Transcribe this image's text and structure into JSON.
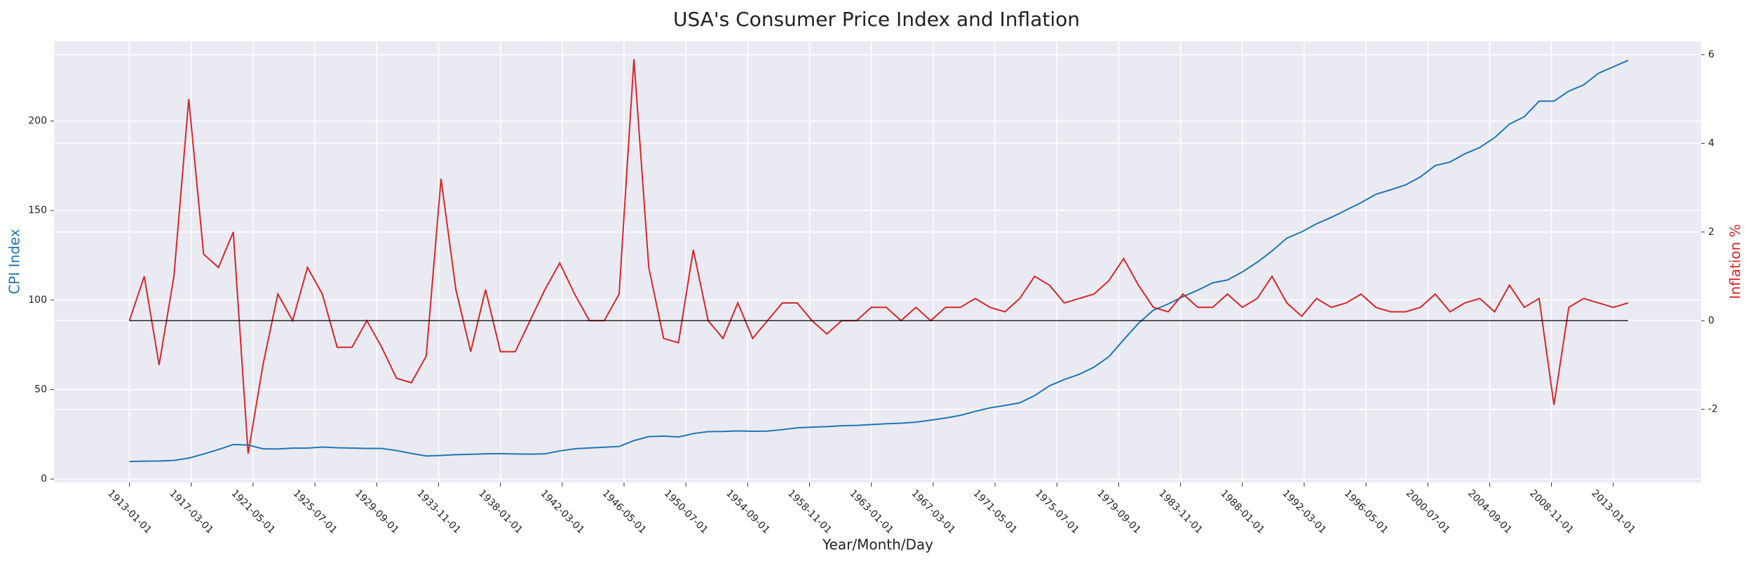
{
  "chart_data": {
    "type": "line",
    "title": "USA's Consumer Price Index and Inflation",
    "xlabel": "Year/Month/Day",
    "ylabel": "CPI Index",
    "y2label": "Inflation %",
    "x": [
      "1913-01-01",
      "1914-01-01",
      "1915-01-01",
      "1916-01-01",
      "1917-01-01",
      "1918-01-01",
      "1919-01-01",
      "1920-01-01",
      "1921-01-01",
      "1922-01-01",
      "1923-01-01",
      "1924-01-01",
      "1925-01-01",
      "1926-01-01",
      "1927-01-01",
      "1928-01-01",
      "1929-01-01",
      "1930-01-01",
      "1931-01-01",
      "1932-01-01",
      "1933-01-01",
      "1934-01-01",
      "1935-01-01",
      "1936-01-01",
      "1937-01-01",
      "1938-01-01",
      "1939-01-01",
      "1940-01-01",
      "1941-01-01",
      "1942-01-01",
      "1943-01-01",
      "1944-01-01",
      "1945-01-01",
      "1946-01-01",
      "1947-01-01",
      "1948-01-01",
      "1949-01-01",
      "1950-01-01",
      "1951-01-01",
      "1952-01-01",
      "1953-01-01",
      "1954-01-01",
      "1955-01-01",
      "1956-01-01",
      "1957-01-01",
      "1958-01-01",
      "1959-01-01",
      "1960-01-01",
      "1961-01-01",
      "1962-01-01",
      "1963-01-01",
      "1964-01-01",
      "1965-01-01",
      "1966-01-01",
      "1967-01-01",
      "1968-01-01",
      "1969-01-01",
      "1970-01-01",
      "1971-01-01",
      "1972-01-01",
      "1973-01-01",
      "1974-01-01",
      "1975-01-01",
      "1976-01-01",
      "1977-01-01",
      "1978-01-01",
      "1979-01-01",
      "1980-01-01",
      "1981-01-01",
      "1982-01-01",
      "1983-01-01",
      "1984-01-01",
      "1985-01-01",
      "1986-01-01",
      "1987-01-01",
      "1988-01-01",
      "1989-01-01",
      "1990-01-01",
      "1991-01-01",
      "1992-01-01",
      "1993-01-01",
      "1994-01-01",
      "1995-01-01",
      "1996-01-01",
      "1997-01-01",
      "1998-01-01",
      "1999-01-01",
      "2000-01-01",
      "2001-01-01",
      "2002-01-01",
      "2003-01-01",
      "2004-01-01",
      "2005-01-01",
      "2006-01-01",
      "2007-01-01",
      "2008-01-01",
      "2009-01-01",
      "2010-01-01",
      "2011-01-01",
      "2012-01-01",
      "2013-01-01",
      "2014-01-01"
    ],
    "series": [
      {
        "color": "#1f77b4",
        "axis": "y",
        "values": [
          9.8,
          10.0,
          10.1,
          10.4,
          11.7,
          14.0,
          16.5,
          19.3,
          19.0,
          16.9,
          16.8,
          17.3,
          17.3,
          17.9,
          17.5,
          17.3,
          17.1,
          17.1,
          15.9,
          14.3,
          12.9,
          13.2,
          13.6,
          13.8,
          14.1,
          14.2,
          14.0,
          13.9,
          14.1,
          15.7,
          16.9,
          17.4,
          17.8,
          18.2,
          21.5,
          23.7,
          24.0,
          23.5,
          25.4,
          26.5,
          26.6,
          26.9,
          26.7,
          26.8,
          27.6,
          28.6,
          29.0,
          29.3,
          29.8,
          30.0,
          30.4,
          30.9,
          31.2,
          31.8,
          32.9,
          34.1,
          35.6,
          37.8,
          39.8,
          41.1,
          42.6,
          46.6,
          52.1,
          55.6,
          58.5,
          62.5,
          68.3,
          77.8,
          87.0,
          94.3,
          97.8,
          101.9,
          105.5,
          109.6,
          111.2,
          115.7,
          121.1,
          127.4,
          134.6,
          138.1,
          142.6,
          146.2,
          150.3,
          154.4,
          159.1,
          161.6,
          164.3,
          168.8,
          175.1,
          177.1,
          181.7,
          185.2,
          190.7,
          198.3,
          202.4,
          211.1,
          211.1,
          216.7,
          220.2,
          226.7,
          230.3,
          233.9
        ]
      },
      {
        "color": "#d62728",
        "axis": "y2",
        "values": [
          0.0,
          1.0,
          -1.0,
          1.0,
          5.0,
          1.5,
          1.2,
          2.0,
          -3.0,
          -1.0,
          0.6,
          0.0,
          1.2,
          0.6,
          -0.6,
          -0.6,
          0.0,
          -0.6,
          -1.3,
          -1.4,
          -0.8,
          3.2,
          0.7,
          -0.7,
          0.7,
          -0.7,
          -0.7,
          0.0,
          0.7,
          1.3,
          0.6,
          0.0,
          0.0,
          0.6,
          5.9,
          1.2,
          -0.4,
          -0.5,
          1.6,
          0.0,
          -0.4,
          0.4,
          -0.4,
          0.0,
          0.4,
          0.4,
          0.0,
          -0.3,
          0.0,
          0.0,
          0.3,
          0.3,
          0.0,
          0.3,
          0.0,
          0.3,
          0.3,
          0.5,
          0.3,
          0.2,
          0.5,
          1.0,
          0.8,
          0.4,
          0.5,
          0.6,
          0.9,
          1.4,
          0.8,
          0.3,
          0.2,
          0.6,
          0.3,
          0.3,
          0.6,
          0.3,
          0.5,
          1.0,
          0.4,
          0.1,
          0.5,
          0.3,
          0.4,
          0.6,
          0.3,
          0.2,
          0.2,
          0.3,
          0.6,
          0.2,
          0.4,
          0.5,
          0.2,
          0.8,
          0.3,
          0.5,
          -1.9,
          0.3,
          0.5,
          0.4,
          0.3,
          0.4
        ]
      }
    ],
    "xlim": [
      "1907-12-01",
      "2018-12-01"
    ],
    "xticks": [
      "1913-01-01",
      "1917-03-01",
      "1921-05-01",
      "1925-07-01",
      "1929-09-01",
      "1933-11-01",
      "1938-01-01",
      "1942-03-01",
      "1946-05-01",
      "1950-07-01",
      "1954-09-01",
      "1958-11-01",
      "1963-01-01",
      "1967-03-01",
      "1971-05-01",
      "1975-07-01",
      "1979-09-01",
      "1983-11-01",
      "1988-01-01",
      "1992-03-01",
      "1996-05-01",
      "2000-07-01",
      "2004-09-01",
      "2008-11-01",
      "2013-01-01"
    ],
    "ylim": [
      -1.9,
      244.5
    ],
    "yticks": [
      0,
      50,
      100,
      150,
      200
    ],
    "y2lim": [
      -3.65,
      6.3
    ],
    "y2ticks": [
      -2,
      0,
      2,
      4,
      6
    ],
    "grid": true
  }
}
